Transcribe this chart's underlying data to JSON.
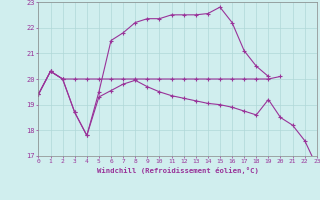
{
  "xlabel": "Windchill (Refroidissement éolien,°C)",
  "x_values": [
    0,
    1,
    2,
    3,
    4,
    5,
    6,
    7,
    8,
    9,
    10,
    11,
    12,
    13,
    14,
    15,
    16,
    17,
    18,
    19,
    20,
    21,
    22,
    23
  ],
  "line1_x": [
    0,
    1,
    2,
    3,
    4,
    5,
    6,
    7,
    8,
    9,
    10,
    11,
    12,
    13,
    14,
    15,
    16,
    17,
    18,
    19,
    20
  ],
  "line1_y": [
    19.4,
    20.3,
    20.0,
    20.0,
    20.0,
    20.0,
    20.0,
    20.0,
    20.0,
    20.0,
    20.0,
    20.0,
    20.0,
    20.0,
    20.0,
    20.0,
    20.0,
    20.0,
    20.0,
    20.0,
    20.1
  ],
  "line2_x": [
    0,
    1,
    2,
    3,
    4,
    5,
    6,
    7,
    8,
    9,
    10,
    11,
    12,
    13,
    14,
    15,
    16,
    17,
    18,
    19,
    20,
    21,
    22,
    23
  ],
  "line2_y": [
    19.4,
    20.3,
    20.0,
    18.7,
    17.8,
    19.3,
    19.55,
    19.8,
    19.95,
    19.7,
    19.5,
    19.35,
    19.25,
    19.15,
    19.05,
    19.0,
    18.9,
    18.75,
    18.6,
    19.2,
    18.5,
    18.2,
    17.6,
    16.6
  ],
  "line3_x": [
    0,
    1,
    2,
    3,
    4,
    5,
    6,
    7,
    8,
    9,
    10,
    11,
    12,
    13,
    14,
    15,
    16,
    17,
    18,
    19
  ],
  "line3_y": [
    19.4,
    20.3,
    20.0,
    18.7,
    17.8,
    19.5,
    21.5,
    21.8,
    22.2,
    22.35,
    22.35,
    22.5,
    22.5,
    22.5,
    22.55,
    22.8,
    22.2,
    21.1,
    20.5,
    20.1
  ],
  "ylim": [
    17,
    23
  ],
  "xlim": [
    0,
    23
  ],
  "yticks": [
    17,
    18,
    19,
    20,
    21,
    22,
    23
  ],
  "line_color": "#993399",
  "bg_color": "#d0eeee",
  "grid_color": "#b0d8d8",
  "spine_color": "#888888"
}
